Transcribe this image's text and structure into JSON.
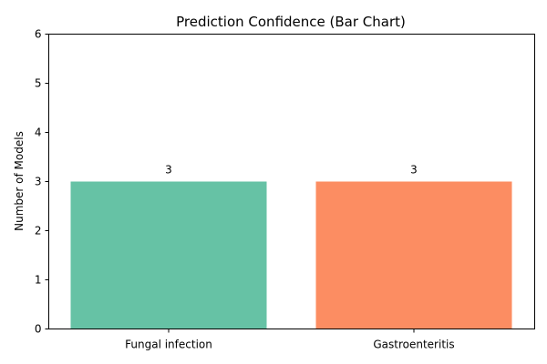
{
  "chart_data": {
    "type": "bar",
    "title": "Prediction Confidence (Bar Chart)",
    "xlabel": "",
    "ylabel": "Number of Models",
    "categories": [
      "Fungal infection",
      "Gastroenteritis"
    ],
    "values": [
      3,
      3
    ],
    "data_labels": [
      "3",
      "3"
    ],
    "colors": [
      "#66c2a5",
      "#fc8d62"
    ],
    "ylim": [
      0,
      6
    ],
    "yticks": [
      0,
      1,
      2,
      3,
      4,
      5,
      6
    ],
    "grid": false,
    "legend": "none"
  }
}
